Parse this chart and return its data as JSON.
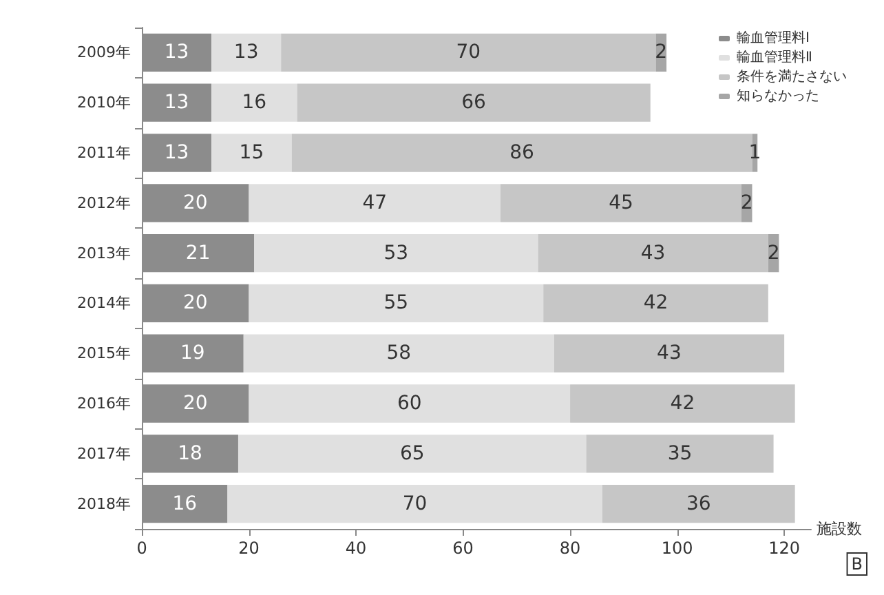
{
  "chart_data": {
    "type": "bar",
    "orientation": "horizontal",
    "stacked": true,
    "data_labels": true,
    "xlabel": "施設数",
    "legend": "top right",
    "grid": false,
    "categories": [
      "2009年",
      "2010年",
      "2011年",
      "2012年",
      "2013年",
      "2014年",
      "2015年",
      "2016年",
      "2017年",
      "2018年"
    ],
    "series": [
      {
        "name": "輸血管理料Ⅰ",
        "color": "#8c8c8c",
        "values": [
          13,
          13,
          13,
          20,
          21,
          20,
          19,
          20,
          18,
          16
        ]
      },
      {
        "name": "輸血管理料Ⅱ",
        "color": "#e0e0e0",
        "values": [
          13,
          16,
          15,
          47,
          53,
          55,
          58,
          60,
          65,
          70
        ]
      },
      {
        "name": "条件を満たさない",
        "color": "#c6c6c6",
        "values": [
          70,
          66,
          86,
          45,
          43,
          42,
          43,
          42,
          35,
          36
        ]
      },
      {
        "name": "知らなかった",
        "color": "#a6a6a6",
        "values": [
          2,
          null,
          1,
          2,
          2,
          null,
          null,
          null,
          null,
          null
        ]
      }
    ],
    "xlim": [
      0,
      125
    ],
    "xticks": [
      0,
      20,
      40,
      60,
      80,
      100,
      120
    ],
    "annotations": [
      "B"
    ]
  }
}
